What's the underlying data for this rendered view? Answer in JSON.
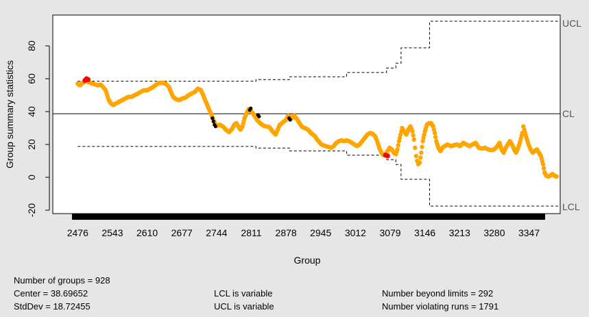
{
  "chart_data": {
    "type": "scatter",
    "title": "",
    "xlabel": "Group",
    "ylabel": "Group summary statistics",
    "x_ticks": [
      "2476",
      "2543",
      "2610",
      "2677",
      "2744",
      "2811",
      "2878",
      "2945",
      "3012",
      "3079",
      "3146",
      "3213",
      "3280",
      "3347"
    ],
    "x_range": [
      2465,
      3378
    ],
    "ylim": [
      -20,
      100
    ],
    "y_ticks": [
      -20,
      0,
      20,
      40,
      60,
      80
    ],
    "center": 38.69652,
    "limit_labels": {
      "ucl": "UCL",
      "cl": "CL",
      "lcl": "LCL"
    },
    "colors": {
      "in_control": "#ffa500",
      "beyond_limits": "#ff0000",
      "violating_runs": "#000000",
      "background": "#e6e6e6",
      "plot_bg": "#ffffff"
    },
    "ucl_steps": [
      {
        "x": 2476,
        "y": 58.5
      },
      {
        "x": 2820,
        "y": 59.5
      },
      {
        "x": 2885,
        "y": 61.2
      },
      {
        "x": 2995,
        "y": 63.8
      },
      {
        "x": 3072,
        "y": 66.5
      },
      {
        "x": 3090,
        "y": 69.5
      },
      {
        "x": 3100,
        "y": 78.8
      },
      {
        "x": 3155,
        "y": 95.0
      },
      {
        "x": 3405,
        "y": 95.0
      }
    ],
    "lcl_steps": [
      {
        "x": 2476,
        "y": 18.8
      },
      {
        "x": 2820,
        "y": 17.8
      },
      {
        "x": 2885,
        "y": 16.1
      },
      {
        "x": 2995,
        "y": 13.5
      },
      {
        "x": 3072,
        "y": 10.8
      },
      {
        "x": 3090,
        "y": 7.8
      },
      {
        "x": 3100,
        "y": -1.2
      },
      {
        "x": 3155,
        "y": -17.5
      },
      {
        "x": 3405,
        "y": -17.5
      }
    ],
    "series_points": [
      [
        2476,
        57
      ],
      [
        2480,
        56
      ],
      [
        2484,
        57
      ],
      [
        2488,
        58
      ],
      [
        2492,
        59
      ],
      [
        2496,
        58
      ],
      [
        2500,
        57.5
      ],
      [
        2505,
        57
      ],
      [
        2510,
        56.5
      ],
      [
        2515,
        56
      ],
      [
        2520,
        56.5
      ],
      [
        2525,
        55
      ],
      [
        2530,
        53
      ],
      [
        2533,
        50
      ],
      [
        2536,
        47
      ],
      [
        2540,
        45
      ],
      [
        2545,
        44
      ],
      [
        2550,
        45
      ],
      [
        2556,
        46
      ],
      [
        2562,
        47
      ],
      [
        2568,
        48
      ],
      [
        2574,
        49
      ],
      [
        2580,
        49
      ],
      [
        2586,
        50
      ],
      [
        2592,
        51
      ],
      [
        2598,
        52
      ],
      [
        2604,
        53
      ],
      [
        2610,
        53
      ],
      [
        2616,
        54
      ],
      [
        2622,
        55
      ],
      [
        2628,
        56.5
      ],
      [
        2634,
        57.5
      ],
      [
        2640,
        57.5
      ],
      [
        2646,
        57
      ],
      [
        2652,
        55
      ],
      [
        2656,
        52
      ],
      [
        2660,
        49
      ],
      [
        2666,
        47.5
      ],
      [
        2672,
        47
      ],
      [
        2678,
        48
      ],
      [
        2684,
        48.5
      ],
      [
        2690,
        50
      ],
      [
        2696,
        51
      ],
      [
        2702,
        52
      ],
      [
        2708,
        54
      ],
      [
        2714,
        53
      ],
      [
        2718,
        50
      ],
      [
        2722,
        47
      ],
      [
        2726,
        44
      ],
      [
        2730,
        41
      ],
      [
        2734,
        38
      ],
      [
        2738,
        35
      ],
      [
        2742,
        32
      ],
      [
        2746,
        31.5
      ],
      [
        2750,
        32
      ],
      [
        2756,
        31
      ],
      [
        2762,
        29
      ],
      [
        2768,
        27.5
      ],
      [
        2774,
        29.5
      ],
      [
        2778,
        32
      ],
      [
        2782,
        33
      ],
      [
        2786,
        31
      ],
      [
        2790,
        29
      ],
      [
        2794,
        31
      ],
      [
        2798,
        36
      ],
      [
        2802,
        39
      ],
      [
        2806,
        41.5
      ],
      [
        2810,
        40.5
      ],
      [
        2814,
        39
      ],
      [
        2818,
        37
      ],
      [
        2822,
        35
      ],
      [
        2828,
        33
      ],
      [
        2834,
        31.5
      ],
      [
        2840,
        31
      ],
      [
        2846,
        30.5
      ],
      [
        2852,
        28
      ],
      [
        2858,
        26
      ],
      [
        2862,
        29
      ],
      [
        2866,
        32
      ],
      [
        2870,
        33
      ],
      [
        2874,
        34
      ],
      [
        2878,
        35
      ],
      [
        2882,
        37.5
      ],
      [
        2886,
        37
      ],
      [
        2890,
        36
      ],
      [
        2894,
        37.5
      ],
      [
        2898,
        36
      ],
      [
        2902,
        34
      ],
      [
        2906,
        32
      ],
      [
        2910,
        30.5
      ],
      [
        2914,
        30
      ],
      [
        2918,
        29.5
      ],
      [
        2922,
        28.5
      ],
      [
        2926,
        27
      ],
      [
        2930,
        26
      ],
      [
        2934,
        25
      ],
      [
        2938,
        23
      ],
      [
        2942,
        21.5
      ],
      [
        2946,
        20
      ],
      [
        2950,
        19.5
      ],
      [
        2955,
        19
      ],
      [
        2960,
        18.5
      ],
      [
        2965,
        18
      ],
      [
        2970,
        19
      ],
      [
        2975,
        21
      ],
      [
        2980,
        22
      ],
      [
        2985,
        22.5
      ],
      [
        2990,
        22
      ],
      [
        2995,
        22.5
      ],
      [
        3000,
        22
      ],
      [
        3005,
        21
      ],
      [
        3010,
        20
      ],
      [
        3015,
        19
      ],
      [
        3020,
        20
      ],
      [
        3025,
        22
      ],
      [
        3030,
        24
      ],
      [
        3035,
        26
      ],
      [
        3040,
        27
      ],
      [
        3045,
        26.5
      ],
      [
        3050,
        25
      ],
      [
        3054,
        22
      ],
      [
        3058,
        18
      ],
      [
        3062,
        15
      ],
      [
        3066,
        13.5
      ],
      [
        3070,
        14
      ],
      [
        3074,
        16
      ],
      [
        3078,
        18
      ],
      [
        3082,
        17
      ],
      [
        3086,
        15
      ],
      [
        3090,
        14
      ],
      [
        3093,
        17
      ],
      [
        3096,
        22
      ],
      [
        3099,
        26
      ],
      [
        3102,
        30
      ],
      [
        3106,
        28
      ],
      [
        3110,
        26
      ],
      [
        3114,
        29
      ],
      [
        3118,
        31
      ],
      [
        3122,
        28
      ],
      [
        3125,
        23
      ],
      [
        3127,
        18
      ],
      [
        3129,
        13
      ],
      [
        3131,
        10
      ],
      [
        3133,
        8
      ],
      [
        3136,
        9
      ],
      [
        3139,
        15
      ],
      [
        3142,
        22
      ],
      [
        3146,
        28
      ],
      [
        3150,
        32
      ],
      [
        3154,
        33
      ],
      [
        3158,
        33
      ],
      [
        3162,
        31
      ],
      [
        3165,
        27
      ],
      [
        3168,
        22
      ],
      [
        3172,
        18
      ],
      [
        3176,
        16
      ],
      [
        3180,
        18
      ],
      [
        3184,
        19
      ],
      [
        3190,
        20
      ],
      [
        3196,
        19
      ],
      [
        3202,
        19.5
      ],
      [
        3208,
        20
      ],
      [
        3214,
        19
      ],
      [
        3220,
        21
      ],
      [
        3226,
        20
      ],
      [
        3232,
        19
      ],
      [
        3238,
        20
      ],
      [
        3244,
        21
      ],
      [
        3250,
        18
      ],
      [
        3256,
        17.5
      ],
      [
        3262,
        18
      ],
      [
        3268,
        17
      ],
      [
        3274,
        16.5
      ],
      [
        3280,
        17
      ],
      [
        3286,
        19
      ],
      [
        3290,
        21
      ],
      [
        3294,
        17
      ],
      [
        3298,
        15
      ],
      [
        3302,
        18
      ],
      [
        3306,
        20
      ],
      [
        3310,
        22
      ],
      [
        3314,
        20
      ],
      [
        3318,
        17
      ],
      [
        3322,
        15
      ],
      [
        3326,
        18
      ],
      [
        3330,
        22
      ],
      [
        3334,
        27
      ],
      [
        3336,
        31
      ],
      [
        3338,
        29
      ],
      [
        3342,
        24
      ],
      [
        3346,
        20
      ],
      [
        3350,
        17
      ],
      [
        3354,
        15
      ],
      [
        3358,
        16
      ],
      [
        3362,
        17
      ],
      [
        3366,
        15
      ],
      [
        3370,
        13
      ],
      [
        3374,
        8
      ],
      [
        3377,
        3
      ],
      [
        3380,
        1
      ],
      [
        3384,
        0.5
      ],
      [
        3388,
        1
      ],
      [
        3392,
        2
      ],
      [
        3396,
        1
      ],
      [
        3400,
        0.5
      ]
    ],
    "beyond_limits_points": [
      [
        2490,
        59
      ],
      [
        2493,
        60
      ],
      [
        2496,
        59.5
      ],
      [
        3070,
        13.5
      ],
      [
        3074,
        13
      ]
    ],
    "violating_runs_points": [
      [
        2736,
        36
      ],
      [
        2738,
        34
      ],
      [
        2740,
        32
      ],
      [
        2742,
        31
      ],
      [
        2808,
        41
      ],
      [
        2810,
        42
      ],
      [
        2824,
        38
      ],
      [
        2826,
        37
      ],
      [
        2884,
        36
      ],
      [
        2886,
        35
      ]
    ]
  },
  "stats": {
    "number_of_groups": "Number of groups = 928",
    "center": "Center = 38.69652",
    "stddev": "StdDev = 18.72455",
    "lcl_variable": "LCL is variable",
    "ucl_variable": "UCL is variable",
    "beyond_limits": "Number beyond limits = 292",
    "violating_runs": "Number violating runs = 1791"
  }
}
